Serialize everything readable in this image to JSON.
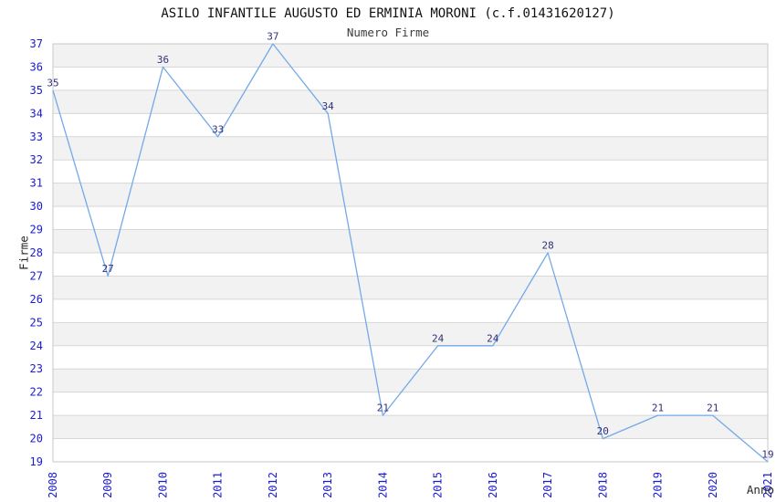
{
  "chart_data": {
    "type": "line",
    "title": "ASILO INFANTILE AUGUSTO ED ERMINIA MORONI (c.f.01431620127)",
    "subtitle": "Numero Firme",
    "xlabel": "Anno",
    "ylabel": "Firme",
    "categories": [
      "2008",
      "2009",
      "2010",
      "2011",
      "2012",
      "2013",
      "2014",
      "2015",
      "2016",
      "2017",
      "2018",
      "2019",
      "2020",
      "2021"
    ],
    "values": [
      35,
      27,
      36,
      33,
      37,
      34,
      21,
      24,
      24,
      28,
      20,
      21,
      21,
      19
    ],
    "ylim": [
      19,
      37
    ],
    "ytick_step": 1,
    "grid": true,
    "legend": "none",
    "banded_background": true,
    "data_labels_shown": true,
    "xtick_rotation_deg": 90,
    "colors": {
      "line": "#74a9e8",
      "tick_label": "#1b1bd0",
      "data_label": "#30307c",
      "band": "#f2f2f2",
      "grid_line": "#d7d7d7",
      "border": "#c8c8c8",
      "title": "#111111",
      "subtitle": "#3c3c3c",
      "axis_label": "#262626",
      "background": "#ffffff"
    }
  }
}
